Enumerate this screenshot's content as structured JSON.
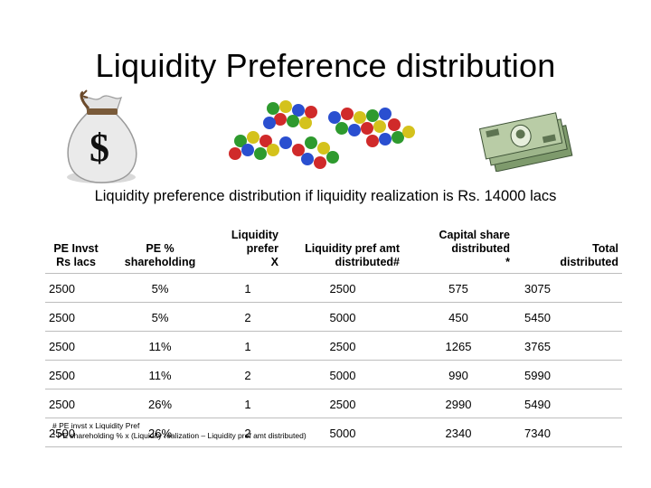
{
  "slide": {
    "title": "Liquidity Preference distribution",
    "subtitle": "Liquidity preference distribution if liquidity realization is Rs. 14000 lacs"
  },
  "illustrations": {
    "left": "money-bag-icon",
    "left_symbol": "$",
    "middle": "push-pins-icon",
    "right": "banknote-stack-icon"
  },
  "table": {
    "headers": [
      "PE Invst\nRs lacs",
      "PE %\nshareholding",
      "Liquidity\nprefer\nX",
      "Liquidity pref amt\ndistributed#",
      "Capital share\ndistributed\n*",
      "Total\ndistributed"
    ],
    "rows": [
      [
        "2500",
        "5%",
        "1",
        "2500",
        "575",
        "3075"
      ],
      [
        "2500",
        "5%",
        "2",
        "5000",
        "450",
        "5450"
      ],
      [
        "2500",
        "11%",
        "1",
        "2500",
        "1265",
        "3765"
      ],
      [
        "2500",
        "11%",
        "2",
        "5000",
        "990",
        "5990"
      ],
      [
        "2500",
        "26%",
        "1",
        "2500",
        "2990",
        "5490"
      ],
      [
        "2500",
        "26%",
        "2",
        "5000",
        "2340",
        "7340"
      ]
    ]
  },
  "footnotes": [
    "# PE invst x Liquidity Pref",
    "* PE shareholding % x (Liquidity realization – Liquidity pref amt distributed)"
  ]
}
